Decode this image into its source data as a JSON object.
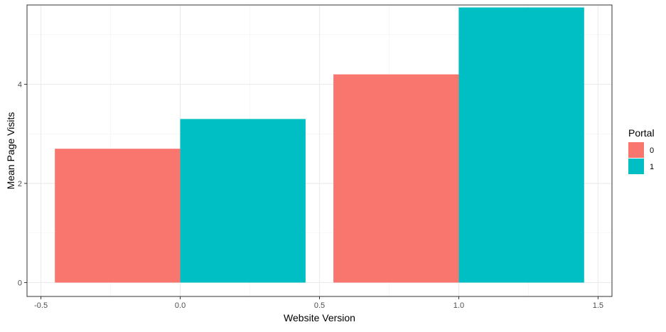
{
  "chart_data": {
    "type": "bar",
    "title": "",
    "xlabel": "Website Version",
    "ylabel": "Mean Page Visits",
    "xlim": [
      -0.55,
      1.55
    ],
    "ylim": [
      -0.28,
      5.6
    ],
    "x_ticks": [
      -0.5,
      0.0,
      0.5,
      1.0,
      1.5
    ],
    "x_tick_labels": [
      "-0.5",
      "0.0",
      "0.5",
      "1.0",
      "1.5"
    ],
    "y_ticks": [
      0,
      2,
      4
    ],
    "y_tick_labels": [
      "0",
      "2",
      "4"
    ],
    "grid": true,
    "bar_width": 0.45,
    "series": [
      {
        "name": "0",
        "color": "#F8766D",
        "x": [
          -0.225,
          0.775
        ],
        "values": [
          2.7,
          4.2
        ]
      },
      {
        "name": "1",
        "color": "#00BFC4",
        "x": [
          0.225,
          1.225
        ],
        "values": [
          3.3,
          5.55
        ]
      }
    ],
    "legend": {
      "title": "Portal",
      "position": "right"
    }
  }
}
